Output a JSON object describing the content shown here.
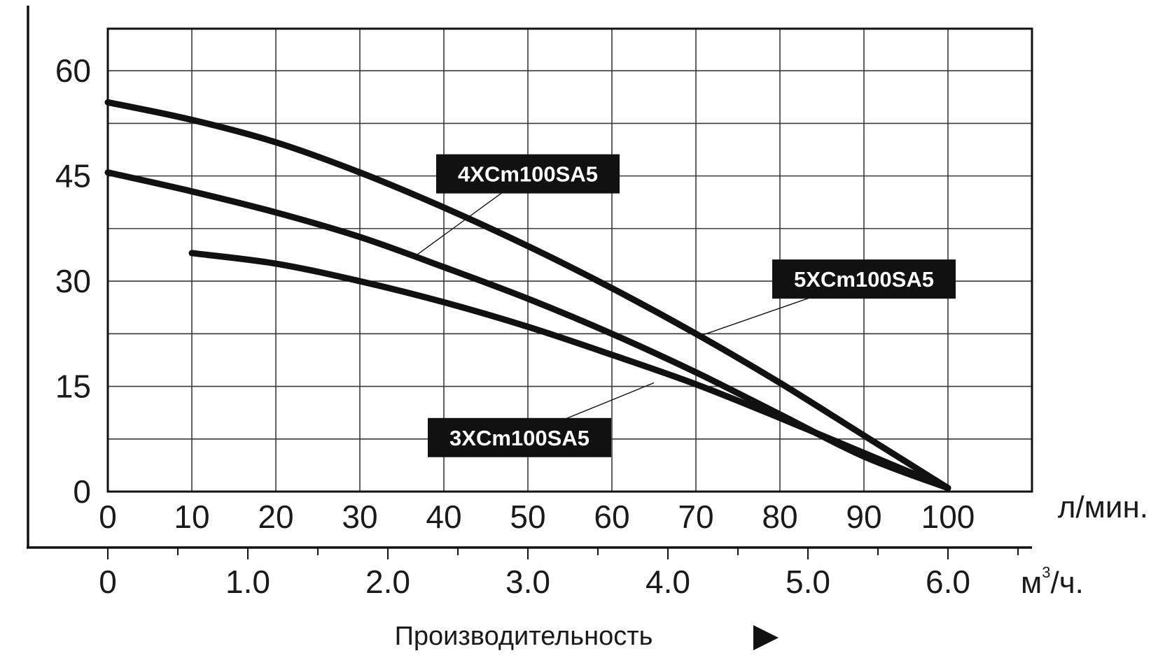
{
  "chart_data": {
    "type": "line",
    "xlabel": "Производительность",
    "x_unit": "л/мин.",
    "x2_unit_base": "м",
    "x2_unit_sup": "3",
    "x2_unit_tail": "/ч.",
    "xlim": [
      0,
      110
    ],
    "ylim": [
      0,
      66
    ],
    "x_ticks": [
      0,
      10,
      20,
      30,
      40,
      50,
      60,
      70,
      80,
      90,
      100
    ],
    "x_tick_labels": [
      "0",
      "10",
      "20",
      "30",
      "40",
      "50",
      "60",
      "70",
      "80",
      "90",
      "100"
    ],
    "x2_ticks": [
      0,
      1.0,
      2.0,
      3.0,
      4.0,
      5.0,
      6.0
    ],
    "x2_tick_labels": [
      "0",
      "1.0",
      "2.0",
      "3.0",
      "4.0",
      "5.0",
      "6.0"
    ],
    "x2_minor_ticks": [
      0.5,
      1.5,
      2.5,
      3.5,
      4.5,
      5.5,
      6.5
    ],
    "y_ticks": [
      0,
      15,
      30,
      45,
      60
    ],
    "y_tick_labels": [
      "0",
      "15",
      "30",
      "45",
      "60"
    ],
    "grid": true,
    "x_grid_step": 10,
    "y_grid_step": 7.5,
    "series": [
      {
        "name": "4XCm100SA5",
        "x": [
          0,
          10,
          20,
          30,
          40,
          50,
          60,
          70,
          80,
          90,
          100
        ],
        "y": [
          55.5,
          53,
          49.8,
          45.5,
          40.5,
          35,
          29,
          22.5,
          15.5,
          8,
          0.5
        ],
        "label_at": [
          50,
          45.3
        ],
        "leader_to": [
          36.5,
          33.5
        ]
      },
      {
        "name": "5XCm100SA5",
        "x": [
          0,
          10,
          20,
          30,
          40,
          50,
          60,
          70,
          80,
          90,
          100
        ],
        "y": [
          45.5,
          42.8,
          39.8,
          36.3,
          32,
          27.5,
          22.5,
          17,
          11,
          5,
          0.5
        ],
        "label_at": [
          90,
          30.3
        ],
        "leader_to": [
          70,
          22
        ]
      },
      {
        "name": "3XCm100SA5",
        "x": [
          10,
          20,
          30,
          40,
          50,
          60,
          70,
          80,
          90,
          100
        ],
        "y": [
          34,
          32.5,
          30,
          27,
          23.5,
          19.5,
          15.3,
          10.5,
          5.5,
          0.5
        ],
        "label_at": [
          49,
          7.7
        ],
        "leader_to": [
          65,
          15.5
        ]
      }
    ]
  }
}
